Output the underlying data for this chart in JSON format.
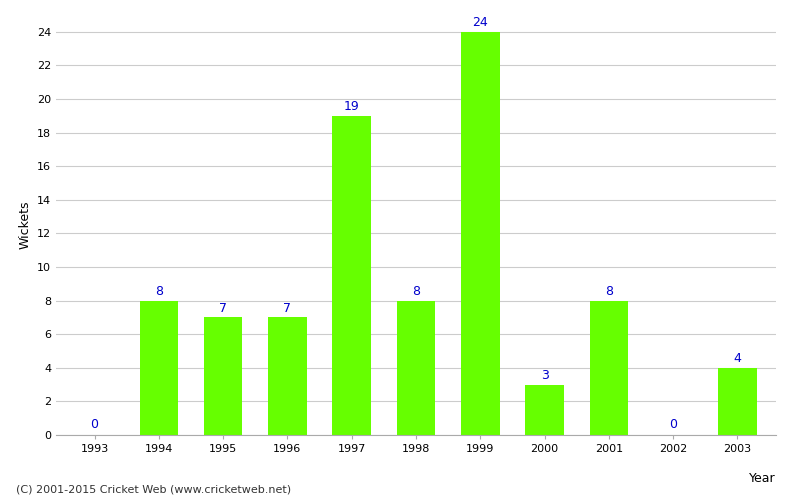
{
  "years": [
    "1993",
    "1994",
    "1995",
    "1996",
    "1997",
    "1998",
    "1999",
    "2000",
    "2001",
    "2002",
    "2003"
  ],
  "wickets": [
    0,
    8,
    7,
    7,
    19,
    8,
    24,
    3,
    8,
    0,
    4
  ],
  "bar_color": "#66ff00",
  "bar_edge_color": "#66ff00",
  "label_color": "#0000cc",
  "xlabel": "Year",
  "ylabel": "Wickets",
  "ylim": [
    0,
    25
  ],
  "yticks": [
    0,
    2,
    4,
    6,
    8,
    10,
    12,
    14,
    16,
    18,
    20,
    22,
    24
  ],
  "background_color": "#ffffff",
  "grid_color": "#cccccc",
  "footnote": "(C) 2001-2015 Cricket Web (www.cricketweb.net)",
  "label_fontsize": 9,
  "axis_label_fontsize": 9,
  "tick_fontsize": 8,
  "footnote_fontsize": 8,
  "bar_width": 0.6
}
